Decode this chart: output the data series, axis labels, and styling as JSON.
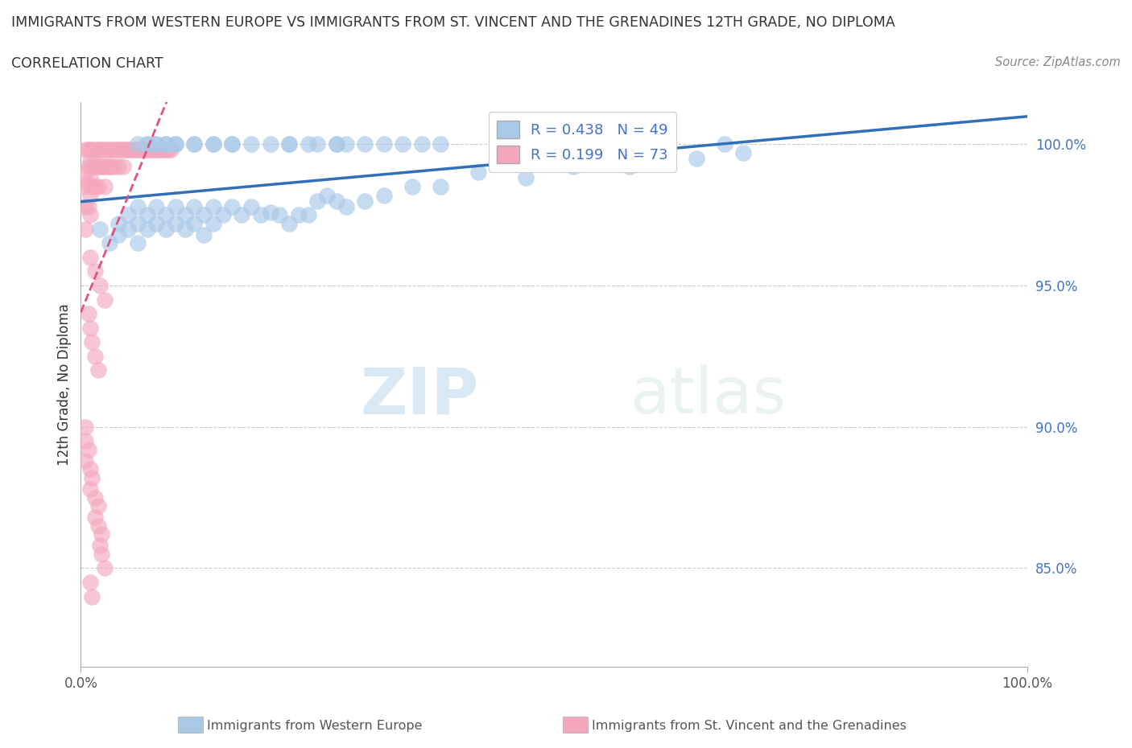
{
  "title": "IMMIGRANTS FROM WESTERN EUROPE VS IMMIGRANTS FROM ST. VINCENT AND THE GRENADINES 12TH GRADE, NO DIPLOMA",
  "subtitle": "CORRELATION CHART",
  "source": "Source: ZipAtlas.com",
  "ylabel": "12th Grade, No Diploma",
  "yaxis_labels": [
    "100.0%",
    "95.0%",
    "90.0%",
    "85.0%"
  ],
  "yaxis_values": [
    1.0,
    0.95,
    0.9,
    0.85
  ],
  "xlim": [
    0.0,
    1.0
  ],
  "ylim": [
    0.815,
    1.015
  ],
  "r_blue": 0.438,
  "n_blue": 49,
  "r_pink": 0.199,
  "n_pink": 73,
  "legend_label_blue": "Immigrants from Western Europe",
  "legend_label_pink": "Immigrants from St. Vincent and the Grenadines",
  "blue_color": "#a8c8e8",
  "pink_color": "#f4a8be",
  "trend_blue_color": "#3070b8",
  "trend_pink_color": "#e05080",
  "watermark_zip": "ZIP",
  "watermark_atlas": "atlas",
  "blue_x": [
    0.02,
    0.03,
    0.04,
    0.04,
    0.05,
    0.05,
    0.06,
    0.06,
    0.06,
    0.07,
    0.07,
    0.08,
    0.08,
    0.09,
    0.09,
    0.1,
    0.1,
    0.11,
    0.11,
    0.12,
    0.12,
    0.13,
    0.13,
    0.14,
    0.14,
    0.15,
    0.16,
    0.17,
    0.18,
    0.19,
    0.2,
    0.21,
    0.22,
    0.23,
    0.24,
    0.25,
    0.26,
    0.27,
    0.28,
    0.3,
    0.32,
    0.35,
    0.38,
    0.42,
    0.47,
    0.52,
    0.58,
    0.65,
    0.7
  ],
  "blue_y": [
    0.97,
    0.965,
    0.968,
    0.972,
    0.975,
    0.97,
    0.978,
    0.972,
    0.965,
    0.975,
    0.97,
    0.978,
    0.972,
    0.975,
    0.97,
    0.978,
    0.972,
    0.975,
    0.97,
    0.978,
    0.972,
    0.975,
    0.968,
    0.978,
    0.972,
    0.975,
    0.978,
    0.975,
    0.978,
    0.975,
    0.976,
    0.975,
    0.972,
    0.975,
    0.975,
    0.98,
    0.982,
    0.98,
    0.978,
    0.98,
    0.982,
    0.985,
    0.985,
    0.99,
    0.988,
    0.992,
    0.992,
    0.995,
    0.997
  ],
  "blue_x_top": [
    0.06,
    0.07,
    0.07,
    0.08,
    0.08,
    0.09,
    0.09,
    0.1,
    0.1,
    0.12,
    0.12,
    0.14,
    0.14,
    0.16,
    0.16,
    0.18,
    0.2,
    0.22,
    0.22,
    0.24,
    0.25,
    0.27,
    0.27,
    0.28,
    0.3,
    0.32,
    0.34,
    0.36,
    0.38,
    0.68
  ],
  "blue_y_top": [
    1.0,
    1.0,
    1.0,
    1.0,
    1.0,
    1.0,
    1.0,
    1.0,
    1.0,
    1.0,
    1.0,
    1.0,
    1.0,
    1.0,
    1.0,
    1.0,
    1.0,
    1.0,
    1.0,
    1.0,
    1.0,
    1.0,
    1.0,
    1.0,
    1.0,
    1.0,
    1.0,
    1.0,
    1.0,
    1.0
  ],
  "pink_x": [
    0.005,
    0.005,
    0.005,
    0.005,
    0.005,
    0.008,
    0.008,
    0.008,
    0.008,
    0.01,
    0.01,
    0.01,
    0.01,
    0.01,
    0.012,
    0.012,
    0.012,
    0.015,
    0.015,
    0.015,
    0.018,
    0.018,
    0.018,
    0.02,
    0.02,
    0.022,
    0.022,
    0.025,
    0.025,
    0.025,
    0.028,
    0.028,
    0.03,
    0.03,
    0.032,
    0.032,
    0.035,
    0.035,
    0.038,
    0.04,
    0.04,
    0.042,
    0.045,
    0.045,
    0.048,
    0.05,
    0.052,
    0.055,
    0.058,
    0.06,
    0.062,
    0.065,
    0.068,
    0.07,
    0.072,
    0.075,
    0.078,
    0.08,
    0.082,
    0.085,
    0.088,
    0.09,
    0.092,
    0.095,
    0.01,
    0.015,
    0.02,
    0.025,
    0.008,
    0.01,
    0.012,
    0.015,
    0.018
  ],
  "pink_y": [
    0.998,
    0.99,
    0.985,
    0.978,
    0.97,
    0.998,
    0.992,
    0.986,
    0.978,
    0.998,
    0.994,
    0.988,
    0.982,
    0.975,
    0.998,
    0.992,
    0.985,
    0.998,
    0.992,
    0.985,
    0.998,
    0.992,
    0.985,
    0.998,
    0.992,
    0.998,
    0.992,
    0.998,
    0.992,
    0.985,
    0.998,
    0.992,
    0.998,
    0.992,
    0.998,
    0.992,
    0.998,
    0.992,
    0.998,
    0.998,
    0.992,
    0.998,
    0.998,
    0.992,
    0.998,
    0.998,
    0.998,
    0.998,
    0.998,
    0.998,
    0.998,
    0.998,
    0.998,
    0.998,
    0.998,
    0.998,
    0.998,
    0.998,
    0.998,
    0.998,
    0.998,
    0.998,
    0.998,
    0.998,
    0.96,
    0.955,
    0.95,
    0.945,
    0.94,
    0.935,
    0.93,
    0.925,
    0.92
  ],
  "pink_low_x": [
    0.005,
    0.005,
    0.005,
    0.008,
    0.01,
    0.01,
    0.012,
    0.015,
    0.015,
    0.018,
    0.018,
    0.02,
    0.022,
    0.022,
    0.025,
    0.01,
    0.012
  ],
  "pink_low_y": [
    0.9,
    0.895,
    0.888,
    0.892,
    0.885,
    0.878,
    0.882,
    0.875,
    0.868,
    0.872,
    0.865,
    0.858,
    0.862,
    0.855,
    0.85,
    0.845,
    0.84
  ]
}
